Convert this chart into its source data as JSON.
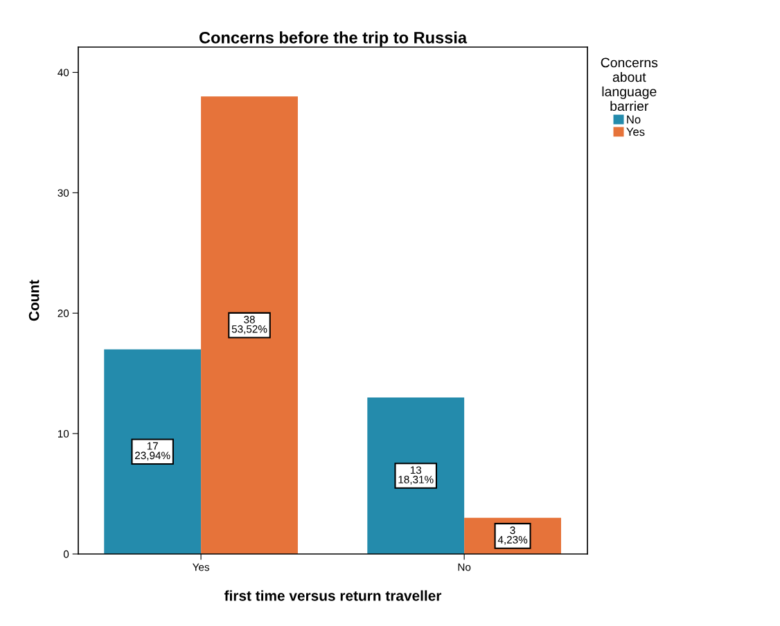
{
  "chart_data": {
    "type": "bar",
    "title": "Concerns before the trip to Russia",
    "xlabel": "first time versus return traveller",
    "ylabel": "Count",
    "legend_title": "Concerns\nabout\nlanguage\nbarrier",
    "categories": [
      "Yes",
      "No"
    ],
    "series": [
      {
        "name": "No",
        "color": "#248bac",
        "values": [
          17,
          13
        ],
        "value_labels": [
          "17\n23,94%",
          "13\n18,31%"
        ]
      },
      {
        "name": "Yes",
        "color": "#e6733a",
        "values": [
          38,
          3
        ],
        "value_labels": [
          "38\n53,52%",
          "3\n4,23%"
        ]
      }
    ],
    "ylim": [
      0,
      42.1
    ],
    "yticks": [
      0,
      10,
      20,
      30,
      40
    ],
    "grid": false,
    "legend": "right"
  }
}
